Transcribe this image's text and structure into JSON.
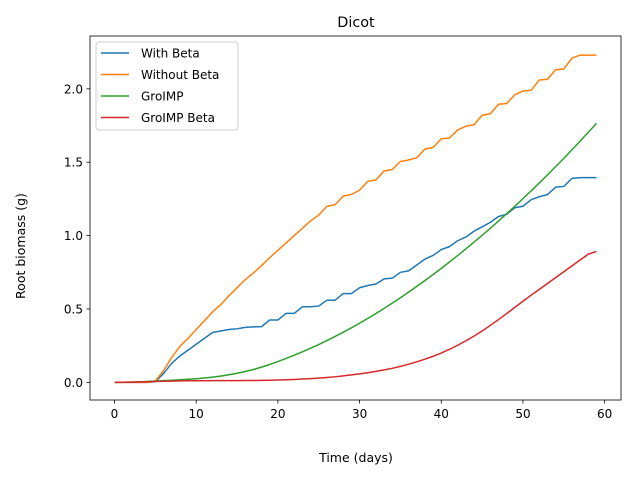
{
  "chart_data": {
    "type": "line",
    "title": "Dicot",
    "xlabel": "Time (days)",
    "ylabel": "Root biomass (g)",
    "xlim": [
      -3,
      62
    ],
    "ylim": [
      -0.12,
      2.36
    ],
    "xticks": [
      0,
      10,
      20,
      30,
      40,
      50,
      60
    ],
    "yticks": [
      0.0,
      0.5,
      1.0,
      1.5,
      2.0
    ],
    "grid": false,
    "legend_position": "top-left",
    "x": [
      0,
      1,
      2,
      3,
      4,
      5,
      6,
      7,
      8,
      9,
      10,
      11,
      12,
      13,
      14,
      15,
      16,
      17,
      18,
      19,
      20,
      21,
      22,
      23,
      24,
      25,
      26,
      27,
      28,
      29,
      30,
      31,
      32,
      33,
      34,
      35,
      36,
      37,
      38,
      39,
      40,
      41,
      42,
      43,
      44,
      45,
      46,
      47,
      48,
      49,
      50,
      51,
      52,
      53,
      54,
      55,
      56,
      57,
      58,
      59
    ],
    "series": [
      {
        "name": "With Beta",
        "color": "#1f77b4",
        "values": [
          0,
          0,
          0,
          0,
          0,
          0.005,
          0.06,
          0.13,
          0.18,
          0.22,
          0.26,
          0.3,
          0.34,
          0.35,
          0.36,
          0.365,
          0.375,
          0.378,
          0.38,
          0.425,
          0.425,
          0.47,
          0.47,
          0.515,
          0.515,
          0.52,
          0.56,
          0.56,
          0.605,
          0.605,
          0.645,
          0.66,
          0.67,
          0.705,
          0.71,
          0.75,
          0.76,
          0.8,
          0.84,
          0.865,
          0.905,
          0.925,
          0.965,
          0.99,
          1.03,
          1.06,
          1.09,
          1.13,
          1.145,
          1.19,
          1.2,
          1.245,
          1.265,
          1.28,
          1.33,
          1.335,
          1.39,
          1.395,
          1.395,
          1.395
        ]
      },
      {
        "name": "Without Beta",
        "color": "#ff7f0e",
        "values": [
          0,
          0,
          0,
          0,
          0,
          0.01,
          0.08,
          0.17,
          0.245,
          0.3,
          0.36,
          0.42,
          0.48,
          0.53,
          0.59,
          0.645,
          0.7,
          0.745,
          0.795,
          0.85,
          0.9,
          0.95,
          1.0,
          1.05,
          1.1,
          1.14,
          1.2,
          1.21,
          1.27,
          1.28,
          1.31,
          1.37,
          1.38,
          1.44,
          1.45,
          1.505,
          1.515,
          1.53,
          1.59,
          1.6,
          1.66,
          1.665,
          1.72,
          1.745,
          1.755,
          1.82,
          1.83,
          1.895,
          1.9,
          1.96,
          1.985,
          1.99,
          2.06,
          2.065,
          2.13,
          2.135,
          2.21,
          2.23,
          2.23,
          2.23
        ]
      },
      {
        "name": "GroIMP",
        "color": "#2ca02c",
        "values": [
          0,
          0.001,
          0.002,
          0.004,
          0.006,
          0.009,
          0.012,
          0.015,
          0.018,
          0.021,
          0.025,
          0.03,
          0.036,
          0.043,
          0.052,
          0.062,
          0.074,
          0.088,
          0.104,
          0.122,
          0.142,
          0.163,
          0.185,
          0.208,
          0.233,
          0.258,
          0.285,
          0.313,
          0.342,
          0.372,
          0.403,
          0.436,
          0.469,
          0.504,
          0.54,
          0.577,
          0.615,
          0.654,
          0.694,
          0.735,
          0.777,
          0.82,
          0.864,
          0.909,
          0.955,
          1.002,
          1.05,
          1.099,
          1.149,
          1.2,
          1.252,
          1.305,
          1.359,
          1.414,
          1.47,
          1.527,
          1.585,
          1.644,
          1.704,
          1.765
        ]
      },
      {
        "name": "GroIMP Beta",
        "color": "#d62728",
        "values": [
          0,
          0.001,
          0.002,
          0.003,
          0.004,
          0.006,
          0.008,
          0.009,
          0.01,
          0.011,
          0.011,
          0.011,
          0.012,
          0.012,
          0.012,
          0.012,
          0.013,
          0.013,
          0.014,
          0.015,
          0.016,
          0.018,
          0.02,
          0.023,
          0.026,
          0.029,
          0.033,
          0.038,
          0.044,
          0.051,
          0.058,
          0.066,
          0.075,
          0.085,
          0.096,
          0.109,
          0.124,
          0.14,
          0.158,
          0.178,
          0.2,
          0.225,
          0.253,
          0.283,
          0.315,
          0.35,
          0.388,
          0.428,
          0.469,
          0.511,
          0.553,
          0.594,
          0.634,
          0.674,
          0.714,
          0.754,
          0.794,
          0.834,
          0.874,
          0.892
        ]
      }
    ]
  }
}
